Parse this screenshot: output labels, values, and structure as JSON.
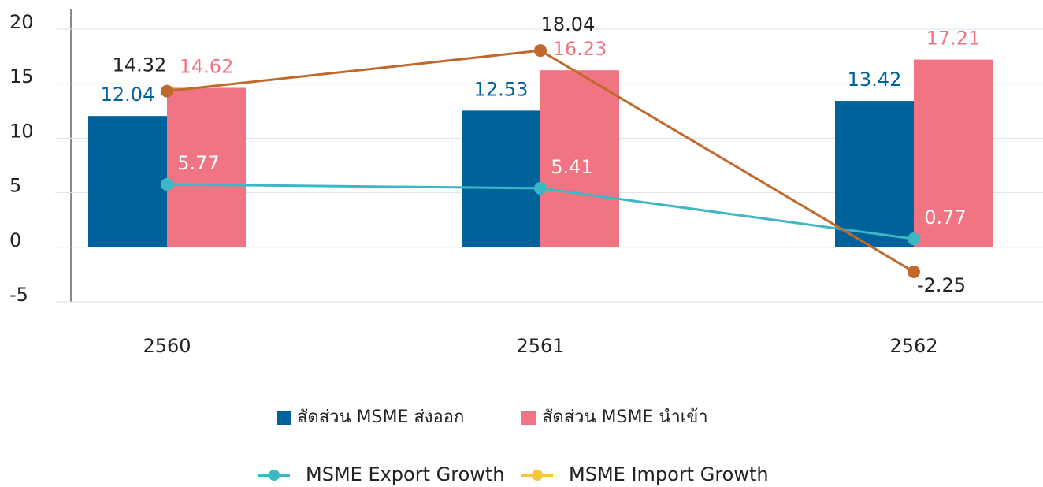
{
  "chart_data": {
    "type": "combo",
    "categories": [
      "2560",
      "2561",
      "2562"
    ],
    "ylim": [
      -5,
      20
    ],
    "yticks": [
      -5,
      0,
      5,
      10,
      15,
      20
    ],
    "grid": true,
    "series": [
      {
        "name": "สัดส่วน MSME ส่งออก",
        "type": "bar",
        "color": "#00629b",
        "label_color": "#00629b",
        "values": [
          12.04,
          12.53,
          13.42
        ]
      },
      {
        "name": "สัดส่วน MSME นำเข้า",
        "type": "bar",
        "color": "#f07482",
        "label_color": "#f07482",
        "values": [
          14.62,
          16.23,
          17.21
        ]
      },
      {
        "name": "MSME Export Growth",
        "type": "line",
        "color": "#3bb8c4",
        "legend_color": "#3bb8c4",
        "label_color": "#ffffff",
        "values": [
          5.77,
          5.41,
          0.77
        ]
      },
      {
        "name": "MSME Import Growth",
        "type": "line",
        "color": "#c0692b",
        "legend_color": "#f5c636",
        "label_color": "#222222",
        "values": [
          14.32,
          18.04,
          -2.25
        ]
      }
    ]
  }
}
